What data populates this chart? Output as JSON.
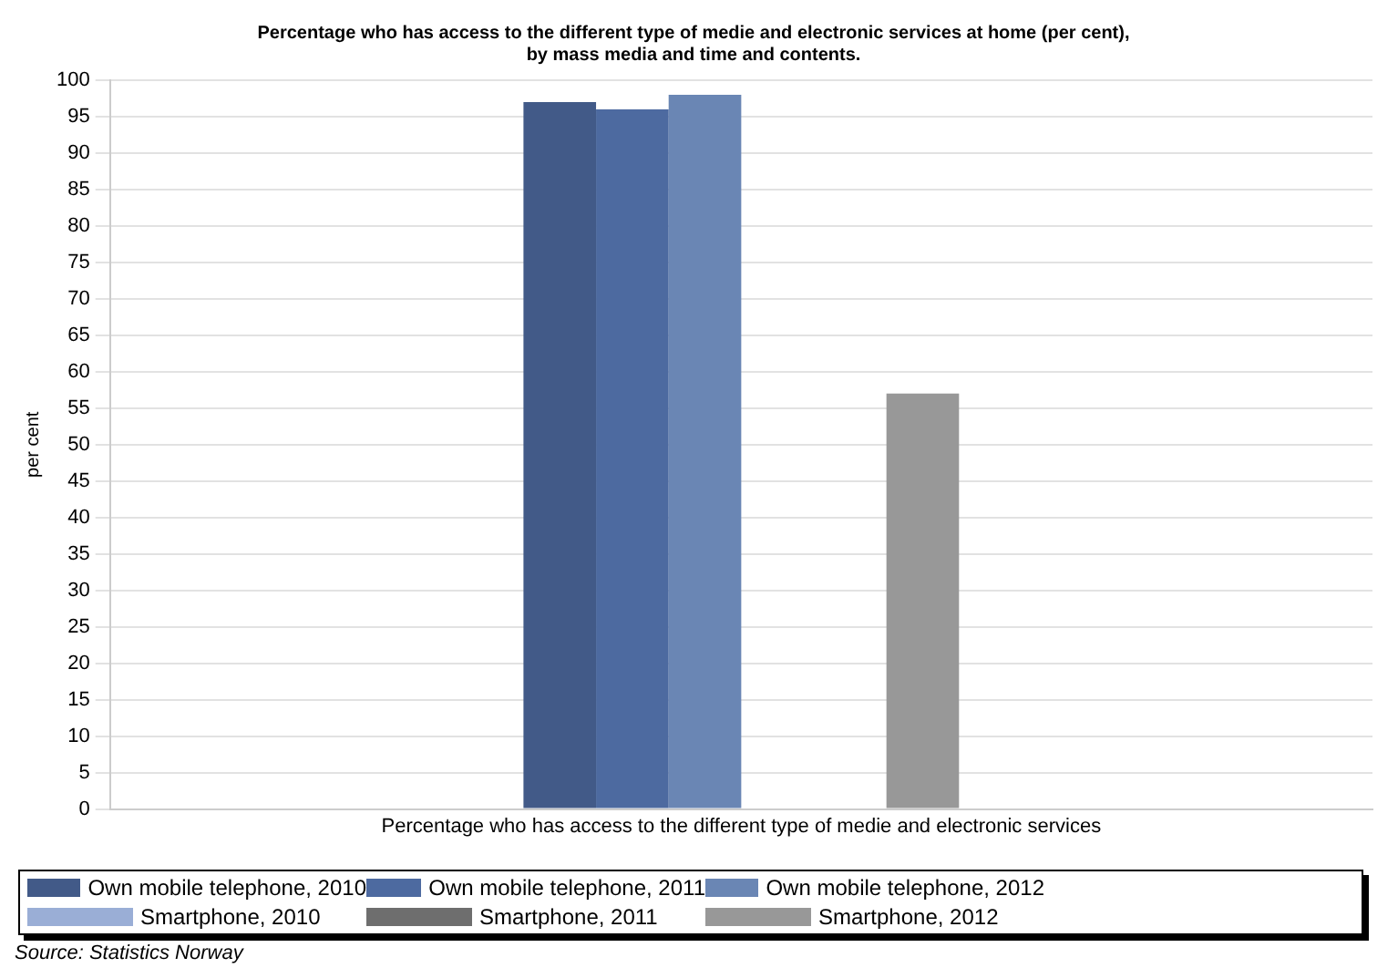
{
  "chart_data": {
    "type": "bar",
    "title": "Percentage who has access to the different type of medie and electronic services at home (per cent),\nby mass media and time and contents.",
    "ylabel": "per cent",
    "categories": [
      "Percentage who has access to the different type of medie and electronic services"
    ],
    "series": [
      {
        "name": "Own mobile telephone, 2010",
        "color": "#425a88",
        "values": [
          97
        ]
      },
      {
        "name": "Own mobile telephone, 2011",
        "color": "#4d6aa0",
        "values": [
          96
        ]
      },
      {
        "name": "Own mobile telephone, 2012",
        "color": "#6a86b4",
        "values": [
          98
        ]
      },
      {
        "name": "Smartphone, 2010",
        "color": "#9aaed6",
        "values": [
          null
        ]
      },
      {
        "name": "Smartphone, 2011",
        "color": "#6e6e6e",
        "values": [
          null
        ]
      },
      {
        "name": "Smartphone, 2012",
        "color": "#989898",
        "values": [
          57
        ]
      }
    ],
    "ylim": [
      0,
      100
    ],
    "yticks": [
      0,
      5,
      10,
      15,
      20,
      25,
      30,
      35,
      40,
      45,
      50,
      55,
      60,
      65,
      70,
      75,
      80,
      85,
      90,
      95,
      100
    ],
    "grid": "y",
    "legend": "bottom",
    "annotations": [
      "Source: Statistics Norway"
    ]
  }
}
